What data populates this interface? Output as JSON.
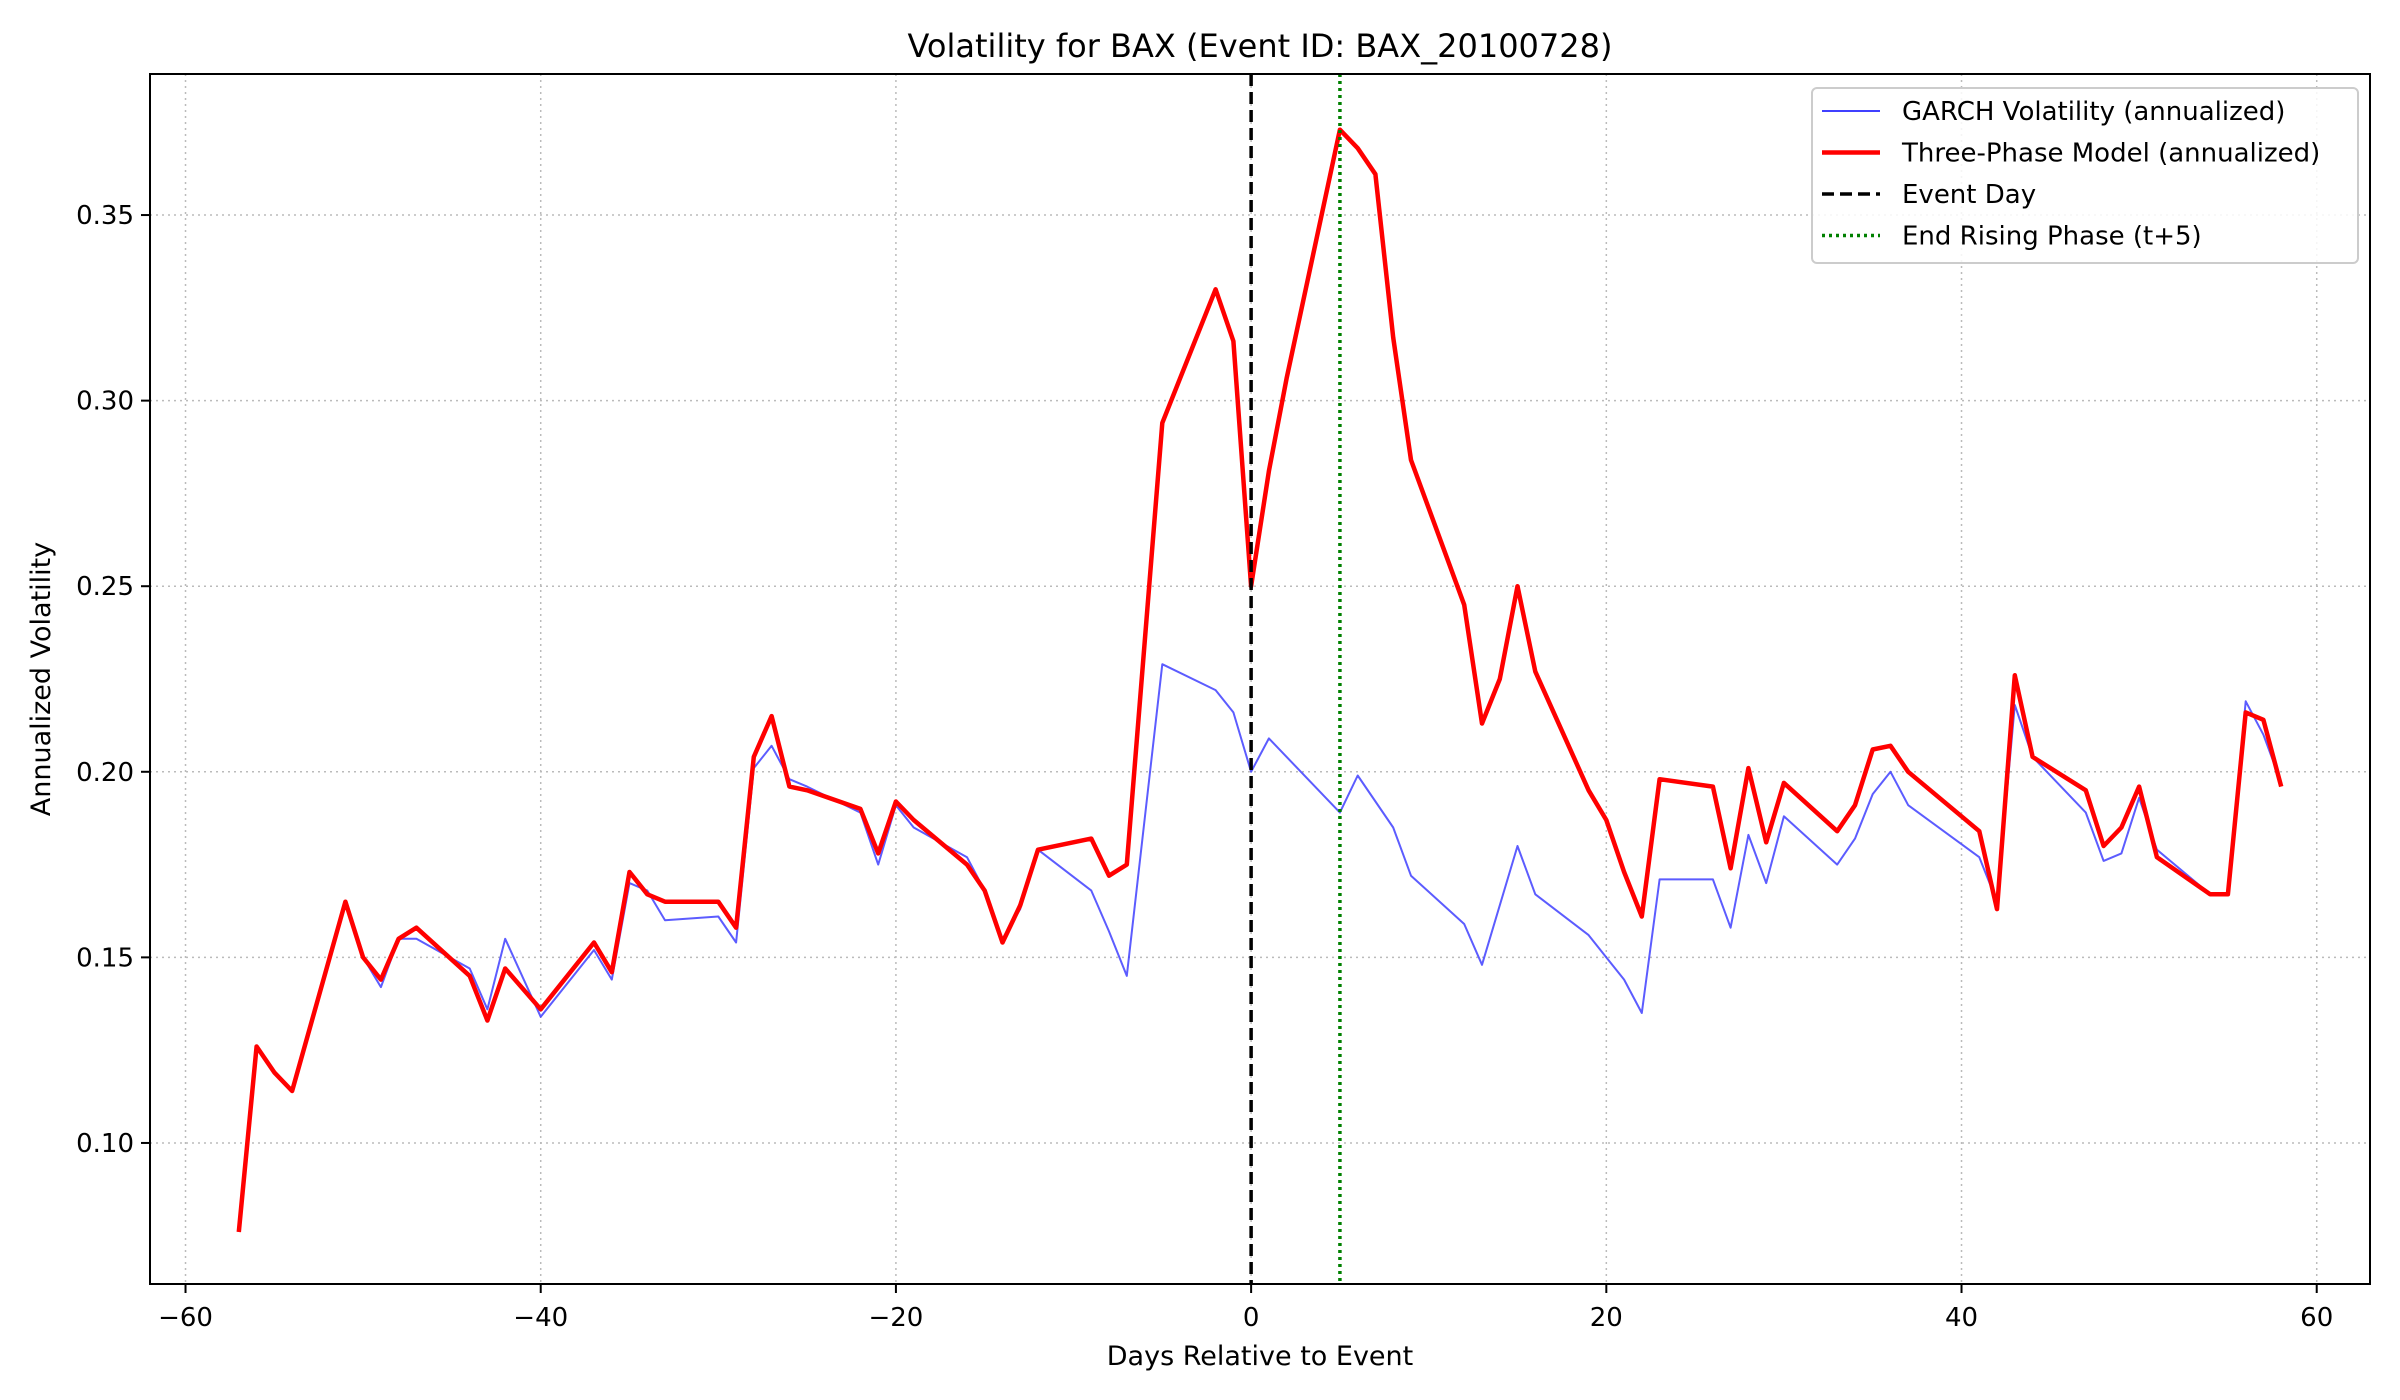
{
  "chart_data": {
    "type": "line",
    "title": "Volatility for BAX (Event ID: BAX_20100728)",
    "xlabel": "Days Relative to Event",
    "ylabel": "Annualized Volatility",
    "xlim": [
      -62,
      63
    ],
    "ylim": [
      0.062,
      0.388
    ],
    "xticks": [
      -60,
      -40,
      -20,
      0,
      20,
      40,
      60
    ],
    "yticks": [
      0.1,
      0.15,
      0.2,
      0.25,
      0.3,
      0.35
    ],
    "grid": true,
    "legend_position": "top-right",
    "colors": {
      "garch": "#4040ff",
      "three_phase": "#ff0000",
      "event_day": "#000000",
      "end_rising": "#008000",
      "grid": "#bbbbbb"
    },
    "legend": [
      {
        "label": "GARCH Volatility (annualized)",
        "style": "solid-thin",
        "color": "#4040ff"
      },
      {
        "label": "Three-Phase Model (annualized)",
        "style": "solid-thick",
        "color": "#ff0000"
      },
      {
        "label": "Event Day",
        "style": "dashed",
        "color": "#000000"
      },
      {
        "label": "End Rising Phase (t+5)",
        "style": "dotted",
        "color": "#008000"
      }
    ],
    "vlines": [
      {
        "name": "Event Day",
        "x": 0,
        "color": "#000000",
        "style": "dashed"
      },
      {
        "name": "End Rising Phase (t+5)",
        "x": 5,
        "color": "#008000",
        "style": "dotted"
      }
    ],
    "series": [
      {
        "name": "GARCH Volatility (annualized)",
        "color": "#4040ff",
        "points": [
          [
            -57,
            0.076
          ],
          [
            -56,
            0.126
          ],
          [
            -55,
            0.119
          ],
          [
            -54,
            0.114
          ],
          [
            -51,
            0.165
          ],
          [
            -50,
            0.15
          ],
          [
            -49,
            0.142
          ],
          [
            -48,
            0.155
          ],
          [
            -47,
            0.155
          ],
          [
            -44,
            0.147
          ],
          [
            -43,
            0.136
          ],
          [
            -42,
            0.155
          ],
          [
            -40,
            0.134
          ],
          [
            -37,
            0.152
          ],
          [
            -36,
            0.144
          ],
          [
            -35,
            0.17
          ],
          [
            -34,
            0.168
          ],
          [
            -33,
            0.16
          ],
          [
            -30,
            0.161
          ],
          [
            -29,
            0.154
          ],
          [
            -28,
            0.201
          ],
          [
            -27,
            0.207
          ],
          [
            -26,
            0.198
          ],
          [
            -25,
            0.196
          ],
          [
            -22,
            0.189
          ],
          [
            -21,
            0.175
          ],
          [
            -20,
            0.191
          ],
          [
            -19,
            0.185
          ],
          [
            -16,
            0.177
          ],
          [
            -15,
            0.168
          ],
          [
            -14,
            0.155
          ],
          [
            -13,
            0.163
          ],
          [
            -12,
            0.179
          ],
          [
            -9,
            0.168
          ],
          [
            -8,
            0.157
          ],
          [
            -7,
            0.145
          ],
          [
            -5,
            0.229
          ],
          [
            -2,
            0.222
          ],
          [
            -1,
            0.216
          ],
          [
            0,
            0.2
          ],
          [
            1,
            0.209
          ],
          [
            5,
            0.189
          ],
          [
            6,
            0.199
          ],
          [
            8,
            0.185
          ],
          [
            9,
            0.172
          ],
          [
            12,
            0.159
          ],
          [
            13,
            0.148
          ],
          [
            15,
            0.18
          ],
          [
            16,
            0.167
          ],
          [
            19,
            0.156
          ],
          [
            20,
            0.15
          ],
          [
            21,
            0.144
          ],
          [
            22,
            0.135
          ],
          [
            23,
            0.171
          ],
          [
            26,
            0.171
          ],
          [
            27,
            0.158
          ],
          [
            28,
            0.183
          ],
          [
            29,
            0.17
          ],
          [
            30,
            0.188
          ],
          [
            33,
            0.175
          ],
          [
            34,
            0.182
          ],
          [
            35,
            0.194
          ],
          [
            36,
            0.2
          ],
          [
            37,
            0.191
          ],
          [
            41,
            0.177
          ],
          [
            42,
            0.165
          ],
          [
            43,
            0.218
          ],
          [
            44,
            0.204
          ],
          [
            47,
            0.189
          ],
          [
            48,
            0.176
          ],
          [
            49,
            0.178
          ],
          [
            50,
            0.193
          ],
          [
            51,
            0.179
          ],
          [
            54,
            0.167
          ],
          [
            55,
            0.167
          ],
          [
            56,
            0.219
          ],
          [
            57,
            0.21
          ],
          [
            58,
            0.197
          ]
        ]
      },
      {
        "name": "Three-Phase Model (annualized)",
        "color": "#ff0000",
        "points": [
          [
            -57,
            0.076
          ],
          [
            -56,
            0.126
          ],
          [
            -55,
            0.119
          ],
          [
            -54,
            0.114
          ],
          [
            -51,
            0.165
          ],
          [
            -50,
            0.15
          ],
          [
            -49,
            0.144
          ],
          [
            -48,
            0.155
          ],
          [
            -47,
            0.158
          ],
          [
            -44,
            0.145
          ],
          [
            -43,
            0.133
          ],
          [
            -42,
            0.147
          ],
          [
            -40,
            0.136
          ],
          [
            -37,
            0.154
          ],
          [
            -36,
            0.146
          ],
          [
            -35,
            0.173
          ],
          [
            -34,
            0.167
          ],
          [
            -33,
            0.165
          ],
          [
            -30,
            0.165
          ],
          [
            -29,
            0.158
          ],
          [
            -28,
            0.204
          ],
          [
            -27,
            0.215
          ],
          [
            -26,
            0.196
          ],
          [
            -25,
            0.195
          ],
          [
            -22,
            0.19
          ],
          [
            -21,
            0.178
          ],
          [
            -20,
            0.192
          ],
          [
            -19,
            0.187
          ],
          [
            -16,
            0.175
          ],
          [
            -15,
            0.168
          ],
          [
            -14,
            0.154
          ],
          [
            -13,
            0.164
          ],
          [
            -12,
            0.179
          ],
          [
            -9,
            0.182
          ],
          [
            -8,
            0.172
          ],
          [
            -7,
            0.175
          ],
          [
            -5,
            0.294
          ],
          [
            -2,
            0.33
          ],
          [
            -1,
            0.316
          ],
          [
            0,
            0.25
          ],
          [
            1,
            0.281
          ],
          [
            2,
            0.306
          ],
          [
            5,
            0.373
          ],
          [
            6,
            0.368
          ],
          [
            7,
            0.361
          ],
          [
            8,
            0.317
          ],
          [
            9,
            0.284
          ],
          [
            12,
            0.245
          ],
          [
            13,
            0.213
          ],
          [
            14,
            0.225
          ],
          [
            15,
            0.25
          ],
          [
            16,
            0.227
          ],
          [
            19,
            0.195
          ],
          [
            20,
            0.187
          ],
          [
            21,
            0.173
          ],
          [
            22,
            0.161
          ],
          [
            23,
            0.198
          ],
          [
            26,
            0.196
          ],
          [
            27,
            0.174
          ],
          [
            28,
            0.201
          ],
          [
            29,
            0.181
          ],
          [
            30,
            0.197
          ],
          [
            33,
            0.184
          ],
          [
            34,
            0.191
          ],
          [
            35,
            0.206
          ],
          [
            36,
            0.207
          ],
          [
            37,
            0.2
          ],
          [
            41,
            0.184
          ],
          [
            42,
            0.163
          ],
          [
            43,
            0.226
          ],
          [
            44,
            0.204
          ],
          [
            47,
            0.195
          ],
          [
            48,
            0.18
          ],
          [
            49,
            0.185
          ],
          [
            50,
            0.196
          ],
          [
            51,
            0.177
          ],
          [
            54,
            0.167
          ],
          [
            55,
            0.167
          ],
          [
            56,
            0.216
          ],
          [
            57,
            0.214
          ],
          [
            58,
            0.196
          ]
        ]
      }
    ]
  }
}
